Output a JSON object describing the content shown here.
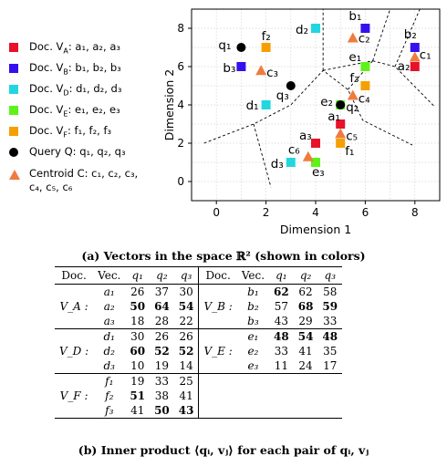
{
  "legend": [
    {
      "key": "A",
      "label": "Doc. V_A: a_1, a_2, a_3",
      "line1": "Doc. V",
      "sub": "A",
      "rest": ": a₁, a₂, a₃",
      "color": "#e8102a",
      "shape": "square"
    },
    {
      "key": "B",
      "label": "Doc. V_B: b_1, b_2, b_3",
      "line1": "Doc. V",
      "sub": "B",
      "rest": ": b₁, b₂, b₃",
      "color": "#3311ee",
      "shape": "square"
    },
    {
      "key": "D",
      "label": "Doc. V_D: d_1, d_2, d_3",
      "line1": "Doc. V",
      "sub": "D",
      "rest": ": d₁, d₂, d₃",
      "color": "#22d6e0",
      "shape": "square"
    },
    {
      "key": "E",
      "label": "Doc. V_E: e_1, e_2, e_3",
      "line1": "Doc. V",
      "sub": "E",
      "rest": ": e₁, e₂, e₃",
      "color": "#5ef21a",
      "shape": "square"
    },
    {
      "key": "F",
      "label": "Doc. V_F: f_1, f_2, f_3",
      "line1": "Doc. V",
      "sub": "F",
      "rest": ": f₁, f₂, f₃",
      "color": "#f5a000",
      "shape": "square"
    },
    {
      "key": "Q",
      "label": "Query Q: q_1, q_2, q_3",
      "line1": "Query Q",
      "sub": "",
      "rest": ": q₁, q₂, q₃",
      "color": "#000000",
      "shape": "circle"
    },
    {
      "key": "C",
      "label": "Centroid C: c_1, c_2, c_3, c_4, c_5, c_6",
      "line1": "Centroid C",
      "sub": "",
      "rest": ": c₁, c₂, c₃,",
      "line2": "c₄, c₅, c₆",
      "color": "#f07b3f",
      "shape": "triangle"
    }
  ],
  "chart_data": {
    "type": "scatter",
    "xlabel": "Dimension 1",
    "ylabel": "Dimension 2",
    "xlim": [
      -1,
      9
    ],
    "ylim": [
      -1,
      9
    ],
    "xticks": [
      0,
      2,
      4,
      6,
      8
    ],
    "yticks": [
      0,
      2,
      4,
      6,
      8
    ],
    "grid": true,
    "series": [
      {
        "name": "V_A",
        "color": "#e8102a",
        "shape": "square",
        "points": [
          {
            "label": "a₁",
            "x": 5,
            "y": 3
          },
          {
            "label": "a₂",
            "x": 8,
            "y": 6
          },
          {
            "label": "a₃",
            "x": 4,
            "y": 2
          }
        ]
      },
      {
        "name": "V_B",
        "color": "#3311ee",
        "shape": "square",
        "points": [
          {
            "label": "b₁",
            "x": 6,
            "y": 8
          },
          {
            "label": "b₂",
            "x": 8,
            "y": 7
          },
          {
            "label": "b₃",
            "x": 1,
            "y": 6
          }
        ]
      },
      {
        "name": "V_D",
        "color": "#22d6e0",
        "shape": "square",
        "points": [
          {
            "label": "d₁",
            "x": 2,
            "y": 4
          },
          {
            "label": "d₂",
            "x": 4,
            "y": 8
          },
          {
            "label": "d₃",
            "x": 3,
            "y": 1
          }
        ]
      },
      {
        "name": "V_E",
        "color": "#5ef21a",
        "shape": "square",
        "points": [
          {
            "label": "e₁",
            "x": 6,
            "y": 6
          },
          {
            "label": "e₂",
            "x": 5,
            "y": 4
          },
          {
            "label": "e₃",
            "x": 4,
            "y": 1
          }
        ]
      },
      {
        "name": "V_F",
        "color": "#f5a000",
        "shape": "square",
        "points": [
          {
            "label": "f₁",
            "x": 5,
            "y": 2
          },
          {
            "label": "f₂",
            "x": 2,
            "y": 7
          },
          {
            "label": "f₃",
            "x": 6,
            "y": 5
          }
        ]
      },
      {
        "name": "Q",
        "color": "#000000",
        "shape": "circle",
        "points": [
          {
            "label": "q₁",
            "x": 1,
            "y": 7
          },
          {
            "label": "q₂",
            "x": 5,
            "y": 4
          },
          {
            "label": "q₃",
            "x": 3,
            "y": 5
          }
        ]
      },
      {
        "name": "C",
        "color": "#f07b3f",
        "shape": "triangle",
        "points": [
          {
            "label": "c₁",
            "x": 8,
            "y": 6.5
          },
          {
            "label": "c₂",
            "x": 5.5,
            "y": 7.5
          },
          {
            "label": "c₃",
            "x": 1.8,
            "y": 5.8
          },
          {
            "label": "c₄",
            "x": 5.5,
            "y": 4.5
          },
          {
            "label": "c₅",
            "x": 5,
            "y": 2.5
          },
          {
            "label": "c₆",
            "x": 3.7,
            "y": 1.3
          }
        ]
      }
    ],
    "voronoi_lines": [
      [
        [
          -0.5,
          2
        ],
        [
          1.5,
          3
        ],
        [
          3,
          4
        ],
        [
          4.3,
          5.8
        ],
        [
          5.3,
          4.8
        ],
        [
          5.9,
          3.2
        ],
        [
          7.9,
          1.9
        ]
      ],
      [
        [
          1.5,
          3
        ],
        [
          2.2,
          -0.3
        ]
      ],
      [
        [
          4.3,
          5.8
        ],
        [
          4.3,
          9
        ]
      ],
      [
        [
          4.3,
          5.8
        ],
        [
          6.3,
          6.3
        ]
      ],
      [
        [
          5.3,
          4.8
        ],
        [
          6.3,
          6.3
        ]
      ],
      [
        [
          6.3,
          6.3
        ],
        [
          7,
          9
        ]
      ],
      [
        [
          6.3,
          6.3
        ],
        [
          7.2,
          6
        ],
        [
          8.8,
          3.9
        ]
      ],
      [
        [
          7.2,
          6
        ],
        [
          8.2,
          9
        ]
      ]
    ]
  },
  "caption_a": "(a) Vectors in the space ℝ² (shown in colors)",
  "caption_b": "(b) Inner product ⟨qᵢ, vⱼ⟩ for each pair of qᵢ, vⱼ",
  "table": {
    "headers": [
      "Doc.",
      "Vec.",
      "q₁",
      "q₂",
      "q₃",
      "Doc.",
      "Vec.",
      "q₁",
      "q₂",
      "q₃"
    ],
    "groups": [
      {
        "left_doc": "V_A :",
        "right_doc": "V_B :",
        "rows": [
          {
            "lv": "a₁",
            "l": [
              "26",
              "37",
              "30"
            ],
            "lb": [
              false,
              false,
              false
            ],
            "rv": "b₁",
            "r": [
              "62",
              "62",
              "58"
            ],
            "rb": [
              true,
              false,
              false
            ]
          },
          {
            "lv": "a₂",
            "l": [
              "50",
              "64",
              "54"
            ],
            "lb": [
              true,
              true,
              true
            ],
            "rv": "b₂",
            "r": [
              "57",
              "68",
              "59"
            ],
            "rb": [
              false,
              true,
              true
            ]
          },
          {
            "lv": "a₃",
            "l": [
              "18",
              "28",
              "22"
            ],
            "lb": [
              false,
              false,
              false
            ],
            "rv": "b₃",
            "r": [
              "43",
              "29",
              "33"
            ],
            "rb": [
              false,
              false,
              false
            ]
          }
        ]
      },
      {
        "left_doc": "V_D :",
        "right_doc": "V_E :",
        "rows": [
          {
            "lv": "d₁",
            "l": [
              "30",
              "26",
              "26"
            ],
            "lb": [
              false,
              false,
              false
            ],
            "rv": "e₁",
            "r": [
              "48",
              "54",
              "48"
            ],
            "rb": [
              true,
              true,
              true
            ]
          },
          {
            "lv": "d₂",
            "l": [
              "60",
              "52",
              "52"
            ],
            "lb": [
              true,
              true,
              true
            ],
            "rv": "e₂",
            "r": [
              "33",
              "41",
              "35"
            ],
            "rb": [
              false,
              false,
              false
            ]
          },
          {
            "lv": "d₃",
            "l": [
              "10",
              "19",
              "14"
            ],
            "lb": [
              false,
              false,
              false
            ],
            "rv": "e₃",
            "r": [
              "11",
              "24",
              "17"
            ],
            "rb": [
              false,
              false,
              false
            ]
          }
        ]
      },
      {
        "left_doc": "V_F :",
        "right_doc": "",
        "rows": [
          {
            "lv": "f₁",
            "l": [
              "19",
              "33",
              "25"
            ],
            "lb": [
              false,
              false,
              false
            ],
            "rv": "",
            "r": [
              "",
              "",
              ""
            ],
            "rb": [
              false,
              false,
              false
            ]
          },
          {
            "lv": "f₂",
            "l": [
              "51",
              "38",
              "41"
            ],
            "lb": [
              true,
              false,
              false
            ],
            "rv": "",
            "r": [
              "",
              "",
              ""
            ],
            "rb": [
              false,
              false,
              false
            ]
          },
          {
            "lv": "f₃",
            "l": [
              "41",
              "50",
              "43"
            ],
            "lb": [
              false,
              true,
              true
            ],
            "rv": "",
            "r": [
              "",
              "",
              ""
            ],
            "rb": [
              false,
              false,
              false
            ]
          }
        ]
      }
    ]
  }
}
